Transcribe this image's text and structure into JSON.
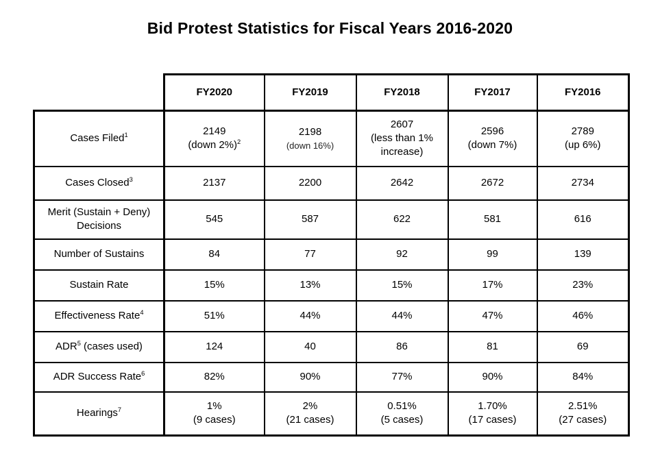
{
  "page": {
    "title": "Bid Protest Statistics for Fiscal Years 2016-2020"
  },
  "table": {
    "corner": "",
    "columns": [
      "FY2020",
      "FY2019",
      "FY2018",
      "FY2017",
      "FY2016"
    ],
    "rows": [
      {
        "label": "Cases Filed^{1}",
        "cells": [
          [
            "2149",
            "(down 2%)^{2}"
          ],
          [
            "2198",
            {
              "text": "(down 16%)",
              "small": true
            }
          ],
          [
            "2607",
            "(less than 1% increase)"
          ],
          [
            "2596",
            "(down 7%)"
          ],
          [
            "2789",
            "(up 6%)"
          ]
        ]
      },
      {
        "label": "Cases Closed^{3}",
        "cells": [
          [
            "2137"
          ],
          [
            "2200"
          ],
          [
            "2642"
          ],
          [
            "2672"
          ],
          [
            "2734"
          ]
        ]
      },
      {
        "label": "Merit (Sustain + Deny) Decisions",
        "cells": [
          [
            "545"
          ],
          [
            "587"
          ],
          [
            "622"
          ],
          [
            "581"
          ],
          [
            "616"
          ]
        ]
      },
      {
        "label": "Number of Sustains",
        "cells": [
          [
            "84"
          ],
          [
            "77"
          ],
          [
            "92"
          ],
          [
            "99"
          ],
          [
            "139"
          ]
        ]
      },
      {
        "label": "Sustain Rate",
        "cells": [
          [
            "15%"
          ],
          [
            "13%"
          ],
          [
            "15%"
          ],
          [
            "17%"
          ],
          [
            "23%"
          ]
        ]
      },
      {
        "label": "Effectiveness Rate^{4}",
        "cells": [
          [
            "51%"
          ],
          [
            "44%"
          ],
          [
            "44%"
          ],
          [
            "47%"
          ],
          [
            "46%"
          ]
        ]
      },
      {
        "label": "ADR^{5} (cases used)",
        "cells": [
          [
            "124"
          ],
          [
            "40"
          ],
          [
            "86"
          ],
          [
            "81"
          ],
          [
            "69"
          ]
        ]
      },
      {
        "label": "ADR Success Rate^{6}",
        "cells": [
          [
            "82%"
          ],
          [
            "90%"
          ],
          [
            "77%"
          ],
          [
            "90%"
          ],
          [
            "84%"
          ]
        ]
      },
      {
        "label": "Hearings^{7}",
        "cells": [
          [
            "1%",
            "(9 cases)"
          ],
          [
            "2%",
            "(21 cases)"
          ],
          [
            "0.51%",
            "(5 cases)"
          ],
          [
            "1.70%",
            "(17 cases)"
          ],
          [
            "2.51%",
            "(27 cases)"
          ]
        ]
      }
    ]
  }
}
